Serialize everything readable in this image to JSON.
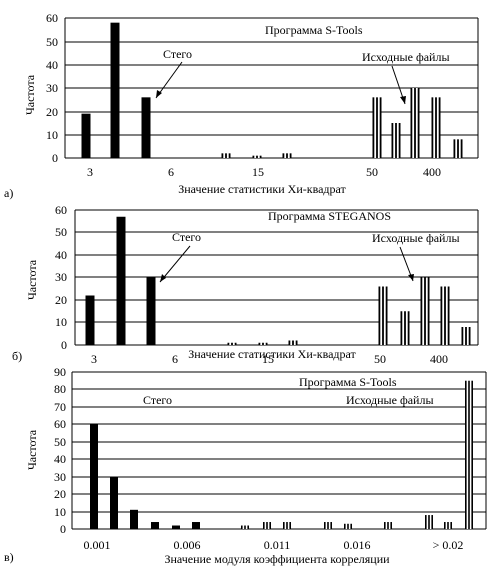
{
  "chart_data": [
    {
      "type": "bar",
      "panel_label": "а)",
      "title": "Программа S-Tools",
      "xlabel": "Значение статистики  Хи-квадрат",
      "ylabel": "Частота",
      "ylim": [
        0,
        60
      ],
      "y_ticks": [
        0,
        10,
        20,
        30,
        40,
        50,
        60
      ],
      "x_tick_labels": [
        "3",
        "6",
        "15",
        "50",
        "400"
      ],
      "grid": "horizontal",
      "annotations": [
        {
          "text": "Стего",
          "points_to": "stego"
        },
        {
          "text": "Исходные файлы",
          "points_to": "original"
        }
      ],
      "series": [
        {
          "group": "stego",
          "style": "solid",
          "values": [
            19,
            58,
            26
          ]
        },
        {
          "group": "original",
          "style": "striped",
          "values": [
            2,
            1,
            2,
            26,
            15,
            30,
            26,
            8
          ]
        }
      ]
    },
    {
      "type": "bar",
      "panel_label": "б)",
      "title": "Программа STEGANOS",
      "xlabel": "Значение статистики  Хи-квадрат",
      "ylabel": "Частота",
      "ylim": [
        0,
        60
      ],
      "y_ticks": [
        0,
        10,
        20,
        30,
        40,
        50,
        60
      ],
      "x_tick_labels": [
        "3",
        "6",
        "15",
        "50",
        "400"
      ],
      "grid": "horizontal",
      "annotations": [
        {
          "text": "Стего",
          "points_to": "stego"
        },
        {
          "text": "Исходные файлы",
          "points_to": "original"
        }
      ],
      "series": [
        {
          "group": "stego",
          "style": "solid",
          "values": [
            22,
            57,
            30
          ]
        },
        {
          "group": "original",
          "style": "striped",
          "values": [
            1,
            1,
            2,
            26,
            15,
            30,
            26,
            8
          ]
        }
      ]
    },
    {
      "type": "bar",
      "panel_label": "в)",
      "title": "Программа S-Tools",
      "xlabel": "Значение модуля коэффициента корреляции",
      "ylabel": "Частота",
      "ylim": [
        0,
        90
      ],
      "y_ticks": [
        0,
        10,
        20,
        30,
        40,
        50,
        60,
        70,
        80,
        90
      ],
      "x_tick_labels": [
        "0.001",
        "0.006",
        "0.011",
        "0.016",
        "> 0.02"
      ],
      "grid": "horizontal",
      "annotations": [
        {
          "text": "Стего",
          "points_to": ""
        },
        {
          "text": "Исходные файлы",
          "points_to": ""
        }
      ],
      "series": [
        {
          "group": "stego",
          "style": "solid",
          "values": [
            60,
            30,
            11,
            4,
            2,
            4
          ]
        },
        {
          "group": "original",
          "style": "striped",
          "values": [
            2,
            4,
            4,
            4,
            3,
            4,
            8,
            4,
            85
          ]
        }
      ]
    }
  ]
}
